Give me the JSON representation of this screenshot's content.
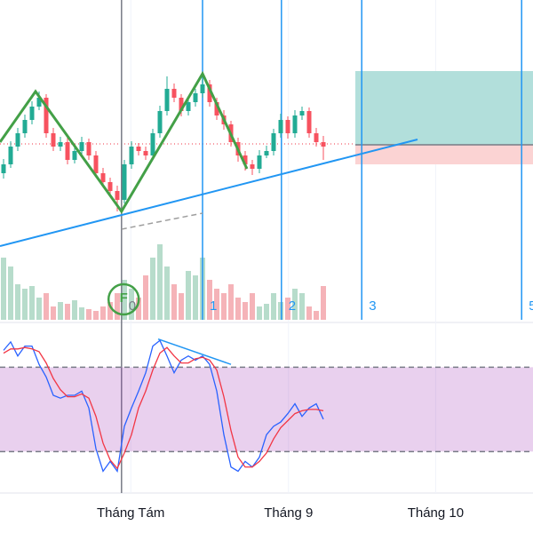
{
  "chart_data": [
    {
      "type": "candlestick",
      "xlim": [
        -0.5,
        74.5
      ],
      "ylim": [
        0,
        360
      ],
      "open": [
        165,
        175,
        195,
        210,
        225,
        240,
        250,
        210,
        195,
        200,
        180,
        190,
        200,
        185,
        165,
        155,
        145,
        135,
        175,
        195,
        190,
        185,
        210,
        235,
        260,
        250,
        235,
        245,
        255,
        265,
        245,
        230,
        220,
        200,
        185,
        175,
        170,
        185,
        190,
        210,
        225,
        210,
        230,
        235,
        210,
        200
      ],
      "high": [
        181,
        201,
        216,
        231,
        246,
        257,
        254,
        216,
        206,
        205,
        196,
        206,
        204,
        190,
        171,
        160,
        151,
        180,
        201,
        199,
        195,
        215,
        241,
        274,
        266,
        254,
        251,
        260,
        277,
        270,
        250,
        236,
        224,
        205,
        190,
        180,
        191,
        196,
        215,
        232,
        229,
        236,
        240,
        239,
        216,
        207
      ],
      "low": [
        159,
        171,
        190,
        205,
        220,
        236,
        205,
        190,
        190,
        175,
        176,
        186,
        180,
        160,
        150,
        140,
        122,
        131,
        170,
        185,
        180,
        180,
        205,
        230,
        245,
        229,
        230,
        240,
        250,
        240,
        225,
        214,
        195,
        178,
        168,
        163,
        165,
        182,
        185,
        205,
        204,
        205,
        225,
        205,
        195,
        180
      ],
      "close": [
        175,
        195,
        210,
        225,
        240,
        250,
        210,
        195,
        200,
        180,
        190,
        200,
        185,
        165,
        155,
        145,
        135,
        175,
        195,
        190,
        185,
        210,
        235,
        260,
        250,
        235,
        245,
        255,
        265,
        245,
        230,
        220,
        200,
        185,
        175,
        170,
        185,
        190,
        210,
        225,
        210,
        230,
        235,
        210,
        200,
        195
      ],
      "up_color": "#22ab94",
      "down_color": "#f7525f",
      "zigzag": {
        "color": "#43a047",
        "x": [
          -0.5,
          4.5,
          16.6,
          28,
          34.25
        ],
        "y": [
          200,
          257,
          122,
          277,
          170
        ]
      },
      "trendline": {
        "color": "#2196f3",
        "x": [
          -0.5,
          58.25
        ],
        "y": [
          83,
          203
        ]
      },
      "dashed_line": {
        "color": "#9e9e9e",
        "x": [
          16.6,
          28
        ],
        "y": [
          102,
          120
        ]
      },
      "entry_line": {
        "color": "#f23645",
        "x": [
          -0.5,
          49.5
        ],
        "y": 198
      },
      "position": {
        "x": [
          49.5,
          74.5
        ],
        "target": 280,
        "entry": 197,
        "stop": 175,
        "target_color": "#b2dfdb",
        "stop_color": "#fbd3d3",
        "entry_color": "#787b86"
      },
      "verticals": [
        {
          "x": 16.6,
          "label": "0",
          "color": "#787b86"
        },
        {
          "x": 28,
          "label": "1",
          "color": "#2196f3"
        },
        {
          "x": 39.1,
          "label": "2",
          "color": "#2196f3"
        },
        {
          "x": 50.4,
          "label": "3",
          "color": "#2196f3"
        },
        {
          "x": 72.9,
          "label": "5",
          "color": "#2196f3"
        }
      ],
      "f_marker": {
        "label": "F",
        "x": 16.9,
        "color": "#43a047"
      }
    },
    {
      "type": "bar",
      "xlim": [
        -0.5,
        74.5
      ],
      "ylim": [
        0,
        360
      ],
      "values": [
        70,
        60,
        40,
        35,
        38,
        25,
        30,
        15,
        20,
        18,
        22,
        14,
        12,
        10,
        15,
        20,
        30,
        45,
        35,
        25,
        50,
        70,
        85,
        60,
        40,
        30,
        55,
        50,
        70,
        45,
        35,
        30,
        40,
        25,
        20,
        30,
        15,
        18,
        30,
        20,
        25,
        35,
        30,
        15,
        10,
        38
      ],
      "up_color": "#b7dccb",
      "down_color": "#f5b3b8"
    },
    {
      "type": "line",
      "xlim": [
        -0.5,
        74.5
      ],
      "ylim": [
        -9.5,
        107.4
      ],
      "series": [
        {
          "color": "#2962ff",
          "values": [
            92,
            98,
            88,
            95,
            95,
            82,
            73,
            60,
            58,
            60,
            60,
            63,
            51,
            22,
            6,
            13,
            6,
            38,
            51,
            63,
            76,
            95,
            99,
            88,
            76,
            85,
            88,
            85,
            88,
            82,
            63,
            32,
            9,
            6,
            13,
            9,
            16,
            32,
            38,
            41,
            47,
            54,
            45,
            51,
            54,
            43
          ]
        },
        {
          "color": "#f23645",
          "values": [
            90,
            93,
            93,
            94,
            93,
            91,
            83,
            72,
            64,
            59,
            59,
            61,
            58,
            45,
            26,
            14,
            8,
            19,
            32,
            51,
            63,
            78,
            90,
            94,
            88,
            83,
            83,
            86,
            87,
            85,
            78,
            59,
            35,
            16,
            9,
            9,
            13,
            19,
            29,
            37,
            42,
            47,
            49,
            50,
            50,
            49
          ]
        }
      ],
      "bands": [
        20,
        80
      ],
      "band_color": "#9c27b0",
      "divergence": {
        "color": "#2196f3",
        "x": [
          21.75,
          32
        ],
        "y": [
          100,
          82
        ]
      },
      "xticks": [
        {
          "value": 17.9,
          "label": "Tháng Tám"
        },
        {
          "value": 40.1,
          "label": "Tháng 9"
        },
        {
          "value": 60.8,
          "label": "Tháng 10"
        }
      ]
    }
  ]
}
